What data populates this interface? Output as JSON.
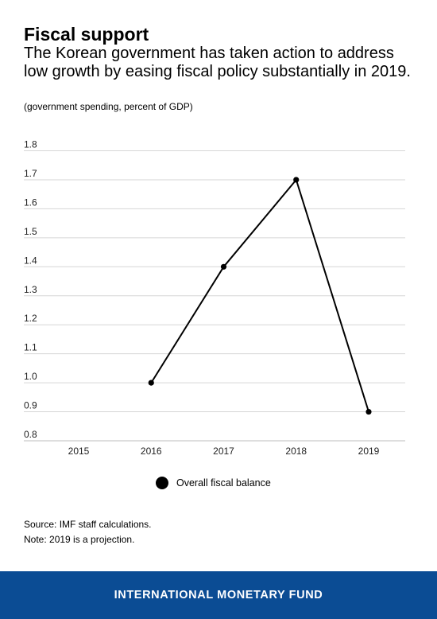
{
  "header": {
    "title": "Fiscal support",
    "subtitle": "The Korean government has taken action to address low growth by easing fiscal policy substantially in 2019.",
    "units": "(government spending, percent of GDP)"
  },
  "chart_data": {
    "type": "line",
    "x": [
      "2015",
      "2016",
      "2017",
      "2018",
      "2019"
    ],
    "series": [
      {
        "name": "Overall fiscal balance",
        "values": [
          null,
          1.0,
          1.4,
          1.7,
          0.9
        ],
        "color": "#000000"
      }
    ],
    "y_ticks": [
      "1.8",
      "1.7",
      "1.6",
      "1.5",
      "1.4",
      "1.3",
      "1.2",
      "1.1",
      "1.0",
      "0.9",
      "0.8"
    ],
    "ylim": [
      0.8,
      1.8
    ],
    "grid": true,
    "legend_position": "bottom-center",
    "title": "",
    "xlabel": "",
    "ylabel": ""
  },
  "legend": {
    "label": "Overall fiscal balance"
  },
  "notes": {
    "source": "Source: IMF staff calculations.",
    "note": "Note: 2019 is a projection."
  },
  "footer": {
    "text": "INTERNATIONAL MONETARY FUND",
    "color": "#0b4c94"
  }
}
